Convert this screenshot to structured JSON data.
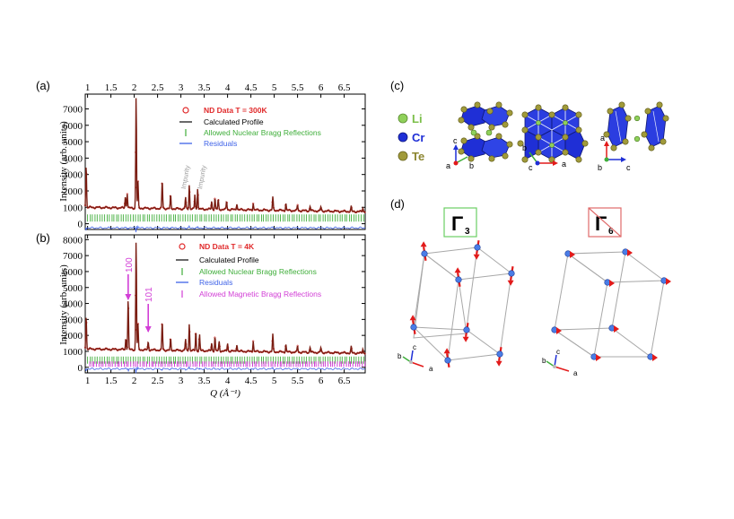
{
  "panel_labels": {
    "a": "(a)",
    "b": "(b)",
    "c": "(c)",
    "d": "(d)"
  },
  "colors": {
    "data_marker": "#e0292a",
    "calc": "#1a1a1a",
    "nuclear": "#3fae3a",
    "residual": "#3f63e8",
    "magnetic": "#d23fd6",
    "li": "#8fd05a",
    "cr": "#1f2fd6",
    "te": "#a09a3a",
    "spin": "#e21a1a",
    "atom": "#4a7de6"
  },
  "chart_data": [
    {
      "id": "a",
      "type": "line",
      "title": "ND Data T = 300K",
      "ylabel": "Intensity (arb. units)",
      "xlabel": "",
      "top_ticks": [
        "1",
        "1.5",
        "2",
        "2.5",
        "3",
        "3.5",
        "4",
        "4.5",
        "5",
        "5.5",
        "6",
        "6.5"
      ],
      "top_tick_values": [
        1,
        1.5,
        2,
        2.5,
        3,
        3.5,
        4,
        4.5,
        5,
        5.5,
        6,
        6.5
      ],
      "yticks": [
        "0",
        "1000",
        "2000",
        "3000",
        "4000",
        "5000",
        "6000",
        "7000"
      ],
      "ytick_values": [
        0,
        1000,
        2000,
        3000,
        4000,
        5000,
        6000,
        7000
      ],
      "xlim": [
        0.95,
        6.95
      ],
      "ylim": [
        -350,
        7900
      ],
      "baseline": 1000,
      "residual_offset": -250,
      "tick_row": 350,
      "legend": [
        "ND Data T = 300K",
        "Calculated Profile",
        "Allowed Nuclear Bragg Reflections",
        "Residuals"
      ],
      "peaks": [
        {
          "q": 0.97,
          "h": 2600
        },
        {
          "q": 1.81,
          "h": 700
        },
        {
          "q": 1.85,
          "h": 900
        },
        {
          "q": 2.04,
          "h": 6800
        },
        {
          "q": 2.08,
          "h": 1600
        },
        {
          "q": 2.6,
          "h": 1700
        },
        {
          "q": 2.78,
          "h": 800
        },
        {
          "q": 3.1,
          "h": 700
        },
        {
          "q": 3.18,
          "h": 1500
        },
        {
          "q": 3.3,
          "h": 900
        },
        {
          "q": 3.36,
          "h": 1300
        },
        {
          "q": 3.66,
          "h": 500
        },
        {
          "q": 3.73,
          "h": 700
        },
        {
          "q": 3.8,
          "h": 600
        },
        {
          "q": 3.98,
          "h": 500
        },
        {
          "q": 4.2,
          "h": 400
        },
        {
          "q": 4.55,
          "h": 450
        },
        {
          "q": 4.97,
          "h": 800
        },
        {
          "q": 5.25,
          "h": 450
        },
        {
          "q": 5.5,
          "h": 350
        },
        {
          "q": 5.77,
          "h": 300
        },
        {
          "q": 6.0,
          "h": 250
        },
        {
          "q": 6.65,
          "h": 300
        },
        {
          "q": 6.9,
          "h": 250
        }
      ],
      "annotations": [
        {
          "text": "Impurity",
          "q": 3.1
        },
        {
          "text": "Impurity",
          "q": 3.45
        }
      ]
    },
    {
      "id": "b",
      "type": "line",
      "title": "ND Data T = 4K",
      "ylabel": "Intensity (arb. units)",
      "xlabel": "Q (Å⁻¹)",
      "xticks": [
        "1",
        "1.5",
        "2",
        "2.5",
        "3",
        "3.5",
        "4",
        "4.5",
        "5",
        "5.5",
        "6",
        "6.5"
      ],
      "xtick_values": [
        1,
        1.5,
        2,
        2.5,
        3,
        3.5,
        4,
        4.5,
        5,
        5.5,
        6,
        6.5
      ],
      "yticks": [
        "0",
        "1000",
        "2000",
        "3000",
        "4000",
        "5000",
        "6000",
        "7000",
        "8000"
      ],
      "ytick_values": [
        0,
        1000,
        2000,
        3000,
        4000,
        5000,
        6000,
        7000,
        8000
      ],
      "xlim": [
        0.95,
        6.95
      ],
      "ylim": [
        -350,
        8300
      ],
      "baseline": 1150,
      "residual_offset": -100,
      "tick_row": 450,
      "mag_row": 200,
      "legend": [
        "ND Data T = 4K",
        "Calculated Profile",
        "Allowed Nuclear Bragg Reflections",
        "Residuals",
        "Allowed Magnetic Bragg Reflections"
      ],
      "peaks": [
        {
          "q": 0.97,
          "h": 2100
        },
        {
          "q": 1.82,
          "h": 700
        },
        {
          "q": 1.87,
          "h": 3200
        },
        {
          "q": 2.04,
          "h": 6800
        },
        {
          "q": 2.08,
          "h": 1600
        },
        {
          "q": 2.3,
          "h": 500
        },
        {
          "q": 2.6,
          "h": 1800
        },
        {
          "q": 2.78,
          "h": 700
        },
        {
          "q": 3.1,
          "h": 700
        },
        {
          "q": 3.18,
          "h": 1700
        },
        {
          "q": 3.32,
          "h": 1200
        },
        {
          "q": 3.4,
          "h": 1000
        },
        {
          "q": 3.66,
          "h": 500
        },
        {
          "q": 3.73,
          "h": 900
        },
        {
          "q": 3.82,
          "h": 600
        },
        {
          "q": 4.0,
          "h": 500
        },
        {
          "q": 4.2,
          "h": 450
        },
        {
          "q": 4.55,
          "h": 700
        },
        {
          "q": 4.97,
          "h": 1100
        },
        {
          "q": 5.25,
          "h": 500
        },
        {
          "q": 5.5,
          "h": 400
        },
        {
          "q": 5.77,
          "h": 350
        },
        {
          "q": 6.0,
          "h": 300
        },
        {
          "q": 6.65,
          "h": 400
        },
        {
          "q": 6.9,
          "h": 300
        }
      ],
      "arrows": [
        {
          "label": "100",
          "q": 1.87
        },
        {
          "label": "101",
          "q": 2.3
        }
      ]
    }
  ],
  "structure": {
    "legend": [
      "Li",
      "Cr",
      "Te"
    ],
    "axes_1": [
      "c",
      "a",
      "b"
    ],
    "axes_2": [
      "b",
      "c",
      "a"
    ],
    "axes_3": [
      "a",
      "b",
      "c"
    ]
  },
  "magnetic": {
    "gamma3": {
      "symbol": "Γ",
      "sub": "3"
    },
    "gamma6": {
      "symbol": "Γ",
      "sub": "6"
    },
    "axes_left": [
      "c",
      "b",
      "a"
    ],
    "axes_right": [
      "c",
      "b",
      "a"
    ]
  }
}
